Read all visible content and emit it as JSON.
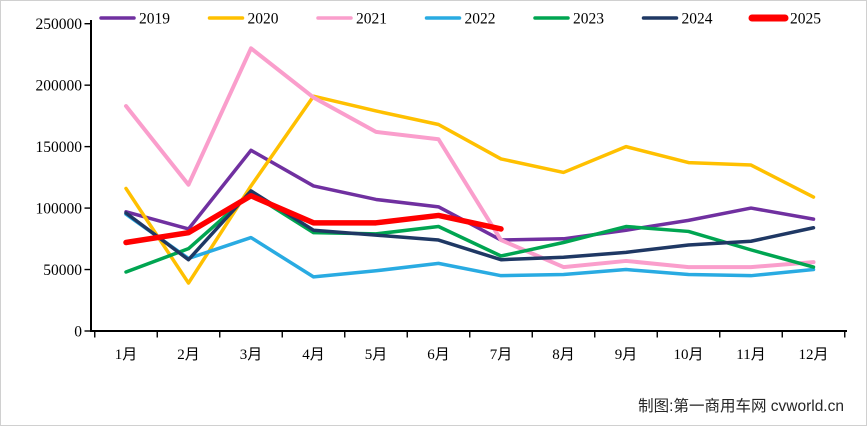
{
  "chart_data": {
    "type": "line",
    "title": "",
    "categories": [
      "1月",
      "2月",
      "3月",
      "4月",
      "5月",
      "6月",
      "7月",
      "8月",
      "9月",
      "10月",
      "11月",
      "12月"
    ],
    "y_axis": {
      "min": 0,
      "max": 250000,
      "tick_step": 50000,
      "tick_labels": [
        "0",
        "50000",
        "100000",
        "150000",
        "200000",
        "250000"
      ]
    },
    "grid": false,
    "legend": {
      "position": "top",
      "entries": [
        "2019",
        "2020",
        "2021",
        "2022",
        "2023",
        "2024",
        "2025"
      ]
    },
    "series": [
      {
        "name": "2019",
        "color": "#7030A0",
        "stroke_width": 3.5,
        "values": [
          97000,
          83000,
          147000,
          118000,
          107000,
          101000,
          74000,
          75000,
          82000,
          90000,
          100000,
          91000
        ]
      },
      {
        "name": "2020",
        "color": "#FFC000",
        "stroke_width": 3.5,
        "values": [
          116000,
          39000,
          118000,
          191000,
          179000,
          168000,
          140000,
          129000,
          150000,
          137000,
          135000,
          109000
        ]
      },
      {
        "name": "2021",
        "color": "#FA9ECC",
        "stroke_width": 4,
        "values": [
          183000,
          119000,
          230000,
          190000,
          162000,
          156000,
          74000,
          52000,
          57000,
          52000,
          52000,
          56000
        ]
      },
      {
        "name": "2022",
        "color": "#29ABE2",
        "stroke_width": 3.5,
        "values": [
          95000,
          59000,
          76000,
          44000,
          49000,
          55000,
          45000,
          46000,
          50000,
          46000,
          45000,
          50000
        ]
      },
      {
        "name": "2023",
        "color": "#00A551",
        "stroke_width": 3.5,
        "values": [
          48000,
          67000,
          112000,
          80000,
          79000,
          85000,
          61000,
          72000,
          85000,
          81000,
          66000,
          52000
        ]
      },
      {
        "name": "2024",
        "color": "#1F3864",
        "stroke_width": 3.5,
        "values": [
          96000,
          58000,
          114000,
          82000,
          78000,
          74000,
          58000,
          60000,
          64000,
          70000,
          73000,
          84000
        ]
      },
      {
        "name": "2025",
        "color": "#FF0000",
        "stroke_width": 5.5,
        "values": [
          72000,
          80000,
          110000,
          88000,
          88000,
          94000,
          83000
        ]
      }
    ],
    "footer": "制图:第一商用车网 cvworld.cn"
  }
}
